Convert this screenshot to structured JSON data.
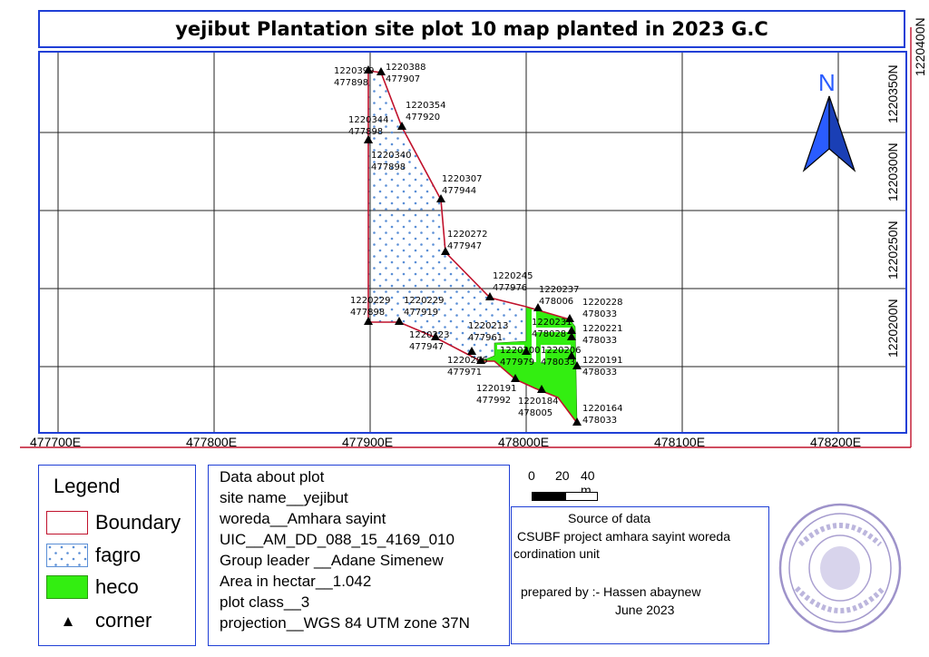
{
  "title": "yejibut Plantation site plot 10 map planted in 2023 G.C",
  "north_arrow": {
    "label": "N",
    "icon": "north-arrow-icon",
    "color": "#2a5cff"
  },
  "colors": {
    "boundary": "#c0122c",
    "fagro_dots": "#5b8fd6",
    "heco": "#33ee11",
    "frame": "#1f3fd6"
  },
  "x_axis_labels": [
    "477700E",
    "477800E",
    "477900E",
    "478000E",
    "478100E",
    "478200E"
  ],
  "y_axis_labels": [
    "1220200N",
    "1220250N",
    "1220300N",
    "1220350N",
    "1220400N"
  ],
  "corner_labels": [
    {
      "n": "1220399",
      "e": "477898"
    },
    {
      "n": "1220388",
      "e": "477907"
    },
    {
      "n": "1220354",
      "e": "477920"
    },
    {
      "n": "1220344",
      "e": "477898"
    },
    {
      "n": "1220340",
      "e": "477898"
    },
    {
      "n": "1220307",
      "e": "477944"
    },
    {
      "n": "1220272",
      "e": "477947"
    },
    {
      "n": "1220245",
      "e": "477976"
    },
    {
      "n": "1220237",
      "e": "478006"
    },
    {
      "n": "1220228",
      "e": "478033"
    },
    {
      "n": "1220229",
      "e": "477898"
    },
    {
      "n": "1220229",
      "e": "477919"
    },
    {
      "n": "1220231",
      "e": "478028"
    },
    {
      "n": "1220221",
      "e": "478033"
    },
    {
      "n": "1220213",
      "e": "477961"
    },
    {
      "n": "1220223",
      "e": "477947"
    },
    {
      "n": "1220200",
      "e": "477979"
    },
    {
      "n": "1220206",
      "e": "478033"
    },
    {
      "n": "1220206",
      "e": "477971"
    },
    {
      "n": "1220191",
      "e": "478033"
    },
    {
      "n": "1220191",
      "e": "477992"
    },
    {
      "n": "1220184",
      "e": "478005"
    },
    {
      "n": "1220164",
      "e": "478033"
    }
  ],
  "legend": {
    "title": "Legend",
    "items": [
      {
        "label": "Boundary",
        "symbol": "boundary-swatch"
      },
      {
        "label": "fagro",
        "symbol": "fagro-swatch"
      },
      {
        "label": "heco",
        "symbol": "heco-swatch"
      },
      {
        "label": "corner",
        "symbol": "corner-triangle-icon"
      }
    ]
  },
  "plot_info": {
    "lines": [
      " Data about plot",
      "site name__yejibut",
      "woreda__Amhara sayint",
      "UIC__AM_DD_088_15_4169_010",
      "Group leader __Adane Simenew",
      "Area in hectar__1.042",
      "plot class__3",
      "projection__WGS 84 UTM zone 37N"
    ]
  },
  "scale_bar": {
    "labels": [
      "0",
      "20",
      "40 m"
    ]
  },
  "source": {
    "heading": "Source of data",
    "line1": "CSUBF project amhara sayint woreda",
    "line2": "cordination unit",
    "prepared": "prepared by :- Hassen abaynew",
    "date": "June 2023"
  }
}
